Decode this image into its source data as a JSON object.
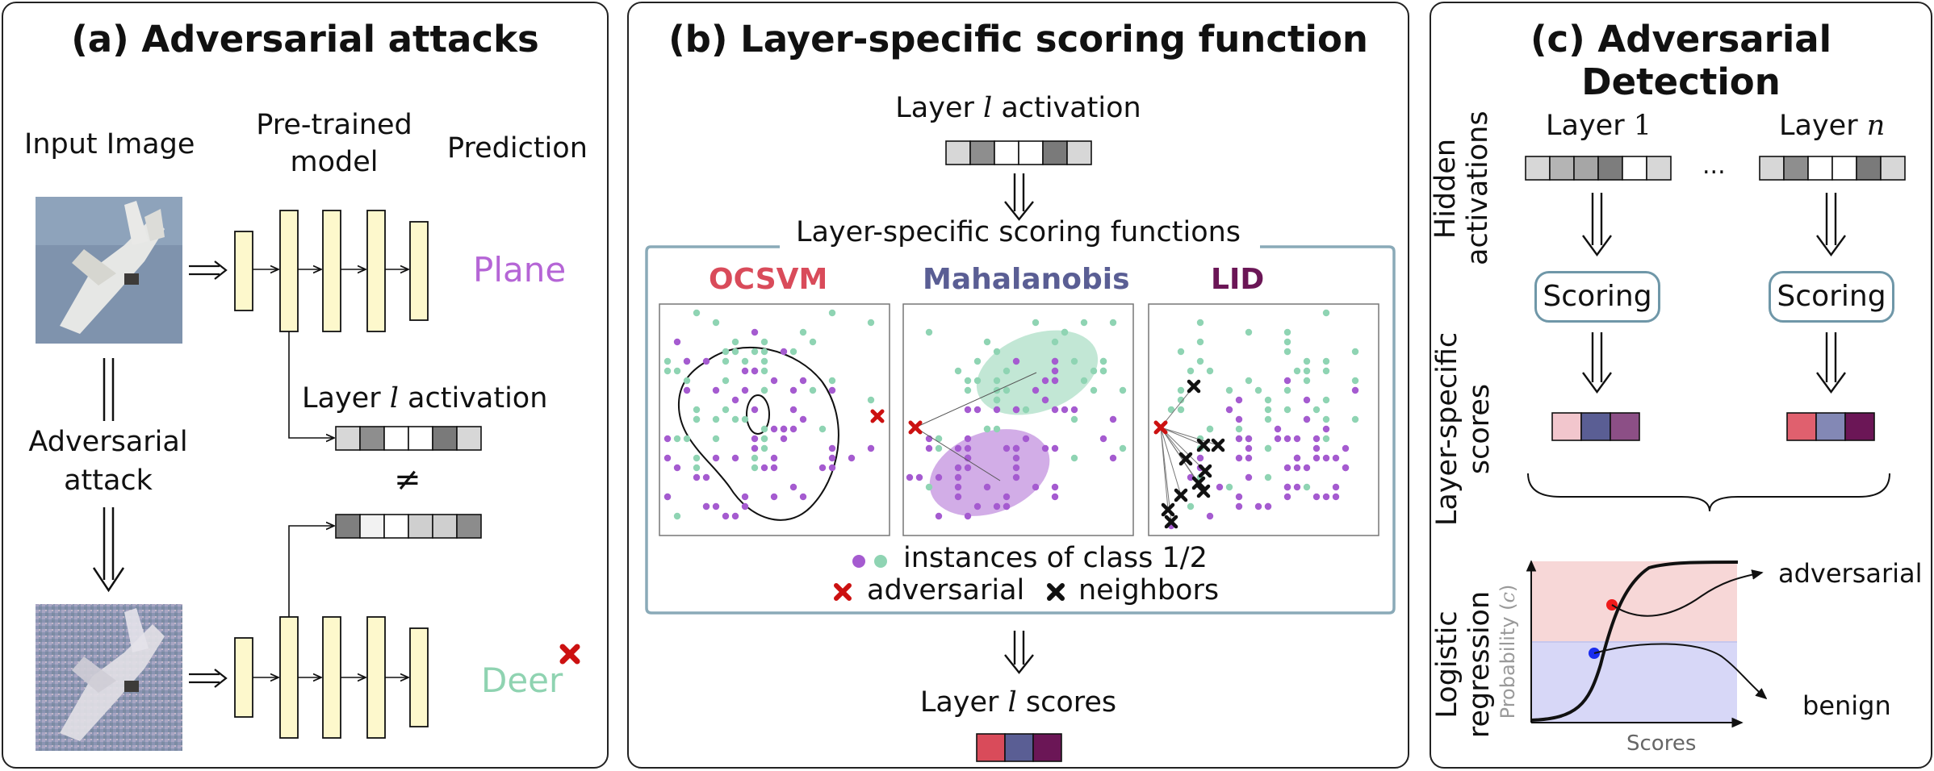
{
  "panel_a": {
    "title": "(a) Adversarial attacks",
    "input_image": "Input Image",
    "pretrained_line1": "Pre-trained",
    "pretrained_line2": "model",
    "prediction": "Prediction",
    "plane": "Plane",
    "deer": "Deer",
    "adversarial_line1": "Adversarial",
    "adversarial_line2": "attack",
    "layer_activation_pre": "Layer ",
    "layer_symbol": "l",
    "layer_activation_post": " activation",
    "not_equal": "≠",
    "colors": {
      "plane": "#b565d6",
      "deer": "#8fd3b1",
      "cross": "#cc1111",
      "layer_fill": "#fdf8cc"
    }
  },
  "panel_b": {
    "title": "(b) Layer-specific scoring function",
    "layer_activation_pre": "Layer ",
    "layer_symbol": "l",
    "layer_activation_post": " activation",
    "group_title": "Layer-specific scoring functions",
    "methods": [
      "OCSVM",
      "Mahalanobis",
      "LID"
    ],
    "method_colors": [
      "#d94b5a",
      "#5a5e94",
      "#6b1656"
    ],
    "legend_class": "instances of class 1/2",
    "legend_adversarial": "adversarial",
    "legend_neighbors": "neighbors",
    "scores_pre": "Layer ",
    "scores_symbol": "l",
    "scores_post": " scores",
    "colors": {
      "class1": "#a55bd0",
      "class2": "#8fd4b3",
      "frame": "#8aaab8"
    }
  },
  "panel_c": {
    "title": "(c) Adversarial Detection",
    "hidden_line1": "Hidden",
    "hidden_line2": "activations",
    "layer1_pre": "Layer ",
    "layer1_num": "1",
    "layern_pre": "Layer ",
    "layern_sym": "n",
    "ellipsis": "...",
    "scoring": "Scoring",
    "layer_specific_line1": "Layer-specific",
    "layer_specific_line2": "scores",
    "logistic_line1": "Logistic",
    "logistic_line2": "regression",
    "probability_pre": "Probability (",
    "probability_sym": "c",
    "probability_post": ")",
    "scores_axis": "Scores",
    "adversarial": "adversarial",
    "benign": "benign"
  }
}
